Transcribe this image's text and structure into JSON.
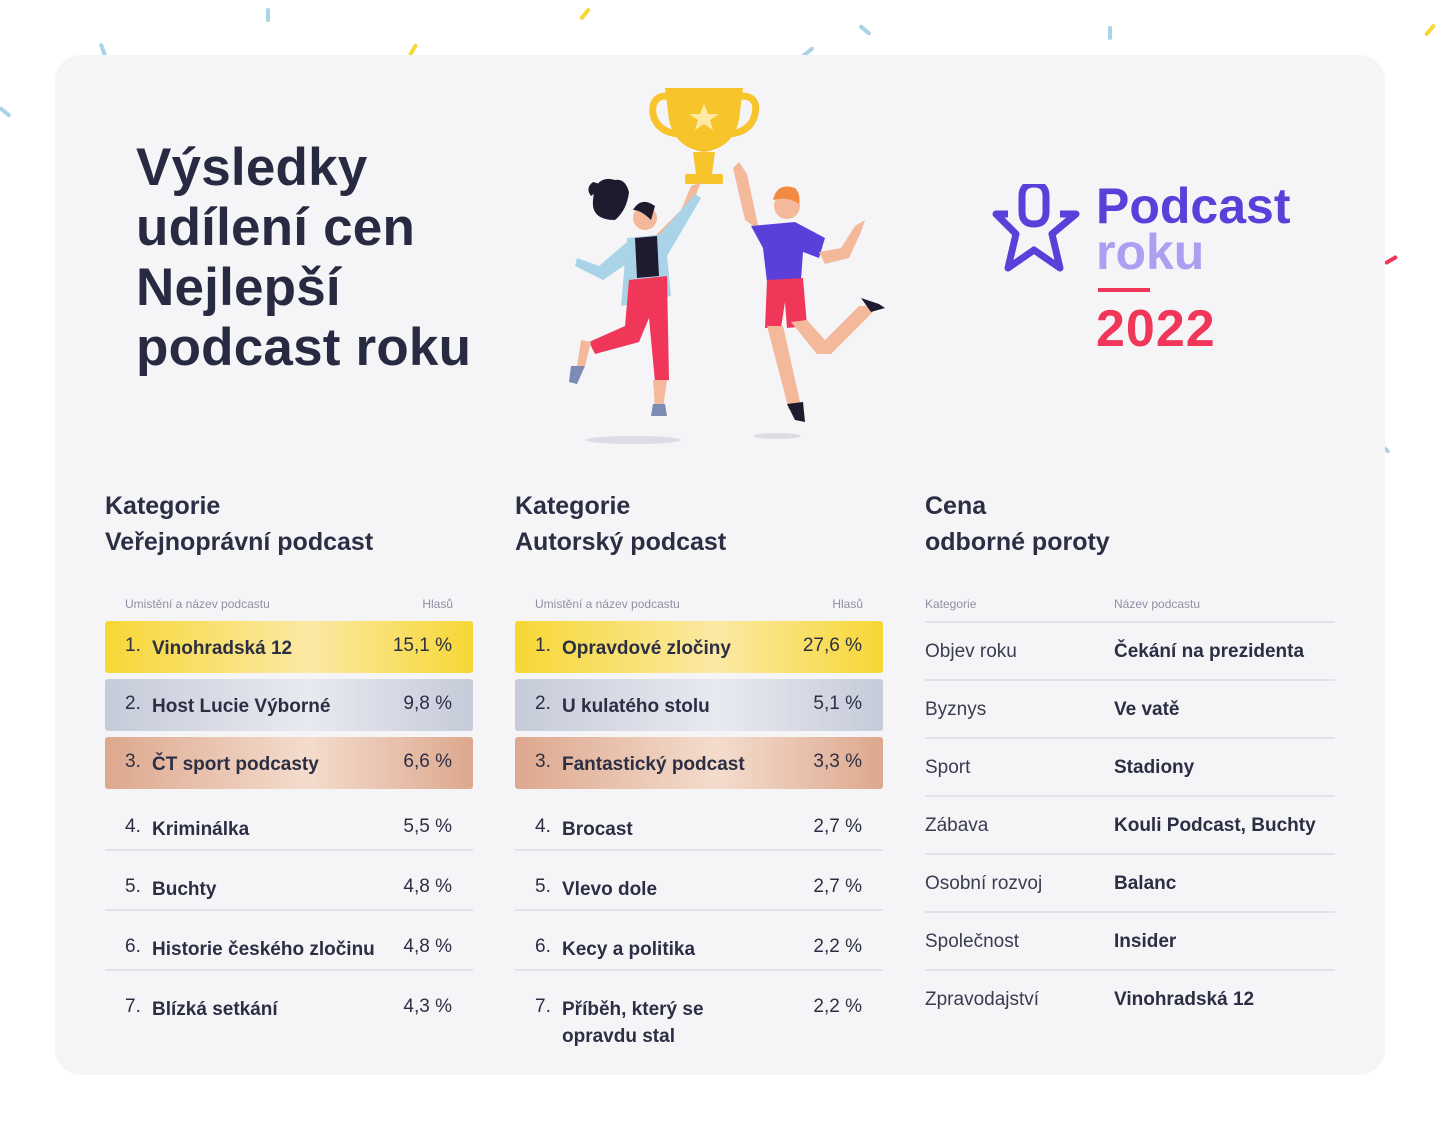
{
  "title_lines": [
    "Výsledky",
    "udílení cen",
    "Nejlepší",
    "podcast roku"
  ],
  "logo": {
    "line1": "Podcast",
    "line2": "roku",
    "year": "2022",
    "icon": "microphone-star-icon"
  },
  "colors": {
    "purple": "#5a3fd9",
    "lavender": "#ae9ef2",
    "red": "#f0375a",
    "gold": "#f7d735",
    "silver": "#c6cbd9",
    "bronze": "#dda88e"
  },
  "public_category": {
    "heading_line1": "Kategorie",
    "heading_line2": "Veřejnoprávní podcast",
    "col_name": "Umistění a název podcastu",
    "col_votes": "Hlasů",
    "rows": [
      {
        "rank": "1.",
        "name": "Vinohradská 12",
        "votes": "15,1 %"
      },
      {
        "rank": "2.",
        "name": "Host Lucie Výborné",
        "votes": "9,8 %"
      },
      {
        "rank": "3.",
        "name": "ČT sport podcasty",
        "votes": "6,6 %"
      },
      {
        "rank": "4.",
        "name": "Kriminálka",
        "votes": "5,5 %"
      },
      {
        "rank": "5.",
        "name": "Buchty",
        "votes": "4,8 %"
      },
      {
        "rank": "6.",
        "name": "Historie českého zločinu",
        "votes": "4,8 %"
      },
      {
        "rank": "7.",
        "name": "Blízká setkání",
        "votes": "4,3 %"
      }
    ]
  },
  "author_category": {
    "heading_line1": "Kategorie",
    "heading_line2": "Autorský podcast",
    "col_name": "Umistění a název podcastu",
    "col_votes": "Hlasů",
    "rows": [
      {
        "rank": "1.",
        "name": "Opravdové zločiny",
        "votes": "27,6 %"
      },
      {
        "rank": "2.",
        "name": "U kulatého stolu",
        "votes": "5,1 %"
      },
      {
        "rank": "3.",
        "name": "Fantastický podcast",
        "votes": "3,3 %"
      },
      {
        "rank": "4.",
        "name": "Brocast",
        "votes": "2,7 %"
      },
      {
        "rank": "5.",
        "name": "Vlevo dole",
        "votes": "2,7 %"
      },
      {
        "rank": "6.",
        "name": "Kecy a politika",
        "votes": "2,2 %"
      },
      {
        "rank": "7.",
        "name": "Příběh, který se opravdu stal",
        "votes": "2,2 %"
      }
    ]
  },
  "jury": {
    "heading_line1": "Cena",
    "heading_line2": "odborné poroty",
    "col_category": "Kategorie",
    "col_podcast": "Název podcastu",
    "rows": [
      {
        "category": "Objev roku",
        "podcast": "Čekání na prezidenta"
      },
      {
        "category": "Byznys",
        "podcast": "Ve vatě"
      },
      {
        "category": "Sport",
        "podcast": "Stadiony"
      },
      {
        "category": "Zábava",
        "podcast": "Kouli Podcast, Buchty"
      },
      {
        "category": "Osobní rozvoj",
        "podcast": "Balanc"
      },
      {
        "category": "Společnost",
        "podcast": "Insider"
      },
      {
        "category": "Zpravodajství",
        "podcast": "Vinohradská 12"
      }
    ]
  }
}
